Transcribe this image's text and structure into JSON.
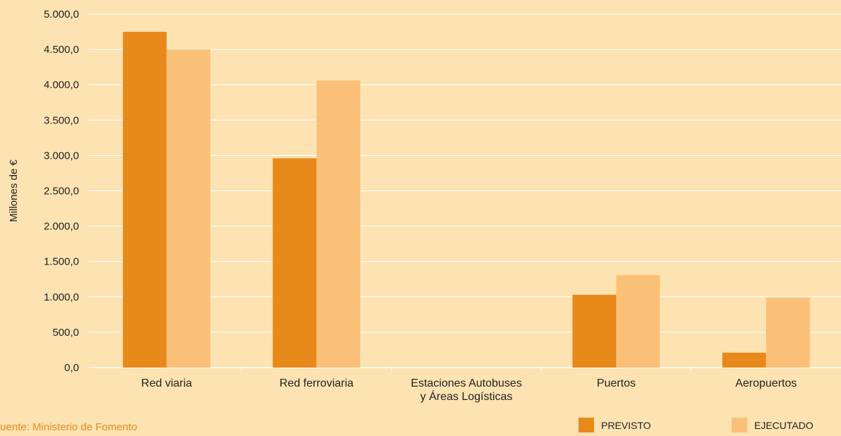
{
  "chart_data": {
    "type": "bar",
    "ylabel": "Millones de €",
    "categories": [
      [
        "Red viaria"
      ],
      [
        "Red ferroviaria"
      ],
      [
        "Estaciones Autobuses",
        "y Áreas Logísticas"
      ],
      [
        "Puertos"
      ],
      [
        "Aeropuertos"
      ]
    ],
    "series": [
      {
        "name": "PREVISTO",
        "color": "#e8891c",
        "values": [
          4750,
          2960,
          0,
          1030,
          210
        ]
      },
      {
        "name": "EJECUTADO",
        "color": "#fbc077",
        "values": [
          4500,
          4060,
          0,
          1310,
          990
        ]
      }
    ],
    "ylim": [
      0,
      5000
    ],
    "ytick_labels": [
      "0,0",
      "500,0",
      "1.000,0",
      "1.500,0",
      "2.000,0",
      "2.500,0",
      "3.000,0",
      "3.500,0",
      "4.000,0",
      "4.500,0",
      "5.000,0"
    ],
    "grid": true,
    "legend_position": "bottom-right"
  },
  "source": "Fuente: Ministerio de Fomento"
}
